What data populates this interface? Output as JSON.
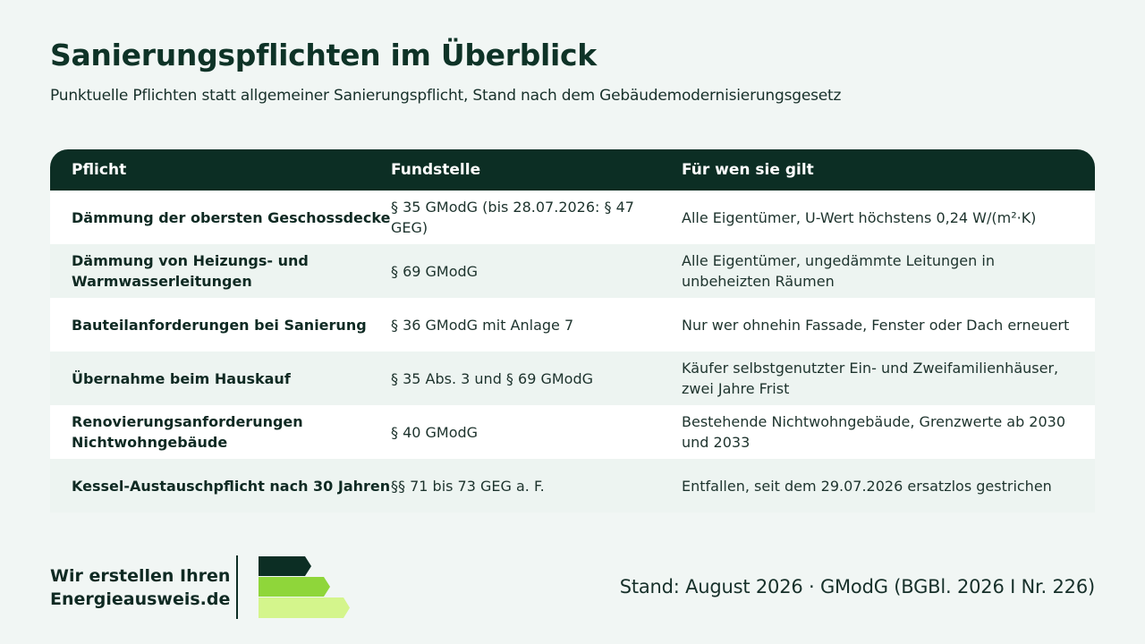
{
  "header": {
    "title": "Sanierungspflichten im Überblick",
    "subtitle": "Punktuelle Pflichten statt allgemeiner Sanierungspflicht, Stand nach dem Gebäudemodernisierungsgesetz"
  },
  "table": {
    "columns": [
      "Pflicht",
      "Fundstelle",
      "Für wen sie gilt"
    ],
    "rows": [
      [
        "Dämmung der obersten Geschossdecke",
        "§ 35 GModG (bis 28.07.2026: § 47 GEG)",
        "Alle Eigentümer, U-Wert höchstens 0,24 W/(m²·K)"
      ],
      [
        "Dämmung von Heizungs- und Warmwasserleitungen",
        "§ 69 GModG",
        "Alle Eigentümer, ungedämmte Leitungen in unbeheizten Räumen"
      ],
      [
        "Bauteilanforderungen bei Sanierung",
        "§ 36 GModG mit Anlage 7",
        "Nur wer ohnehin Fassade, Fenster oder Dach erneuert"
      ],
      [
        "Übernahme beim Hauskauf",
        "§ 35 Abs. 3 und § 69 GModG",
        "Käufer selbstgenutzter Ein- und Zweifamilienhäuser, zwei Jahre Frist"
      ],
      [
        "Renovierungsanforderungen Nichtwohngebäude",
        "§ 40 GModG",
        "Bestehende Nichtwohngebäude, Grenzwerte ab 2030 und 2033"
      ],
      [
        "Kessel-Austauschpflicht nach 30 Jahren",
        "§§ 71 bis 73 GEG a. F.",
        "Entfallen, seit dem 29.07.2026 ersatzlos gestrichen"
      ]
    ]
  },
  "footer": {
    "brand_line1": "Wir erstellen Ihren",
    "brand_line2": "Energieausweis.de",
    "logo_icon": "energy-efficiency-bars-icon",
    "logo_colors": [
      "#0c2e24",
      "#8fd63a",
      "#d4f58c"
    ],
    "stand": "Stand: August 2026 · GModG (BGBl. 2026 I Nr. 226)"
  }
}
